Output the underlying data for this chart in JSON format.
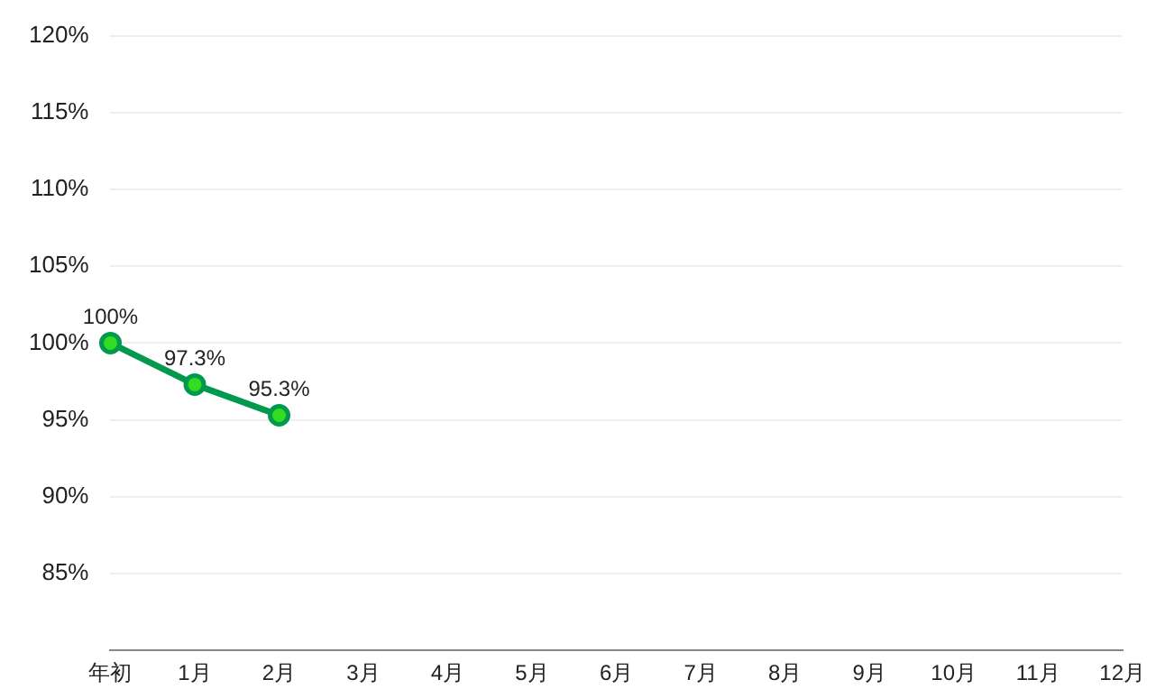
{
  "chart_data": {
    "type": "line",
    "categories": [
      "年初",
      "1月",
      "2月",
      "3月",
      "4月",
      "5月",
      "6月",
      "7月",
      "8月",
      "9月",
      "10月",
      "11月",
      "12月"
    ],
    "series": [
      {
        "color": "#00994d",
        "values": [
          100,
          97.3,
          95.3,
          null,
          null,
          null,
          null,
          null,
          null,
          null,
          null,
          null,
          null
        ],
        "value_labels": [
          "100%",
          "97.3%",
          "95.3%",
          null,
          null,
          null,
          null,
          null,
          null,
          null,
          null,
          null,
          null
        ]
      }
    ],
    "ylim": [
      80,
      120
    ],
    "yticks": [
      {
        "value": 85,
        "label": "85%"
      },
      {
        "value": 90,
        "label": "90%"
      },
      {
        "value": 95,
        "label": "95%"
      },
      {
        "value": 100,
        "label": "100%"
      },
      {
        "value": 105,
        "label": "105%"
      },
      {
        "value": 110,
        "label": "110%"
      },
      {
        "value": 115,
        "label": "115%"
      },
      {
        "value": 120,
        "label": "120%"
      }
    ],
    "grid": "y",
    "legend": false,
    "marker": "circle",
    "line_style": "solid"
  }
}
